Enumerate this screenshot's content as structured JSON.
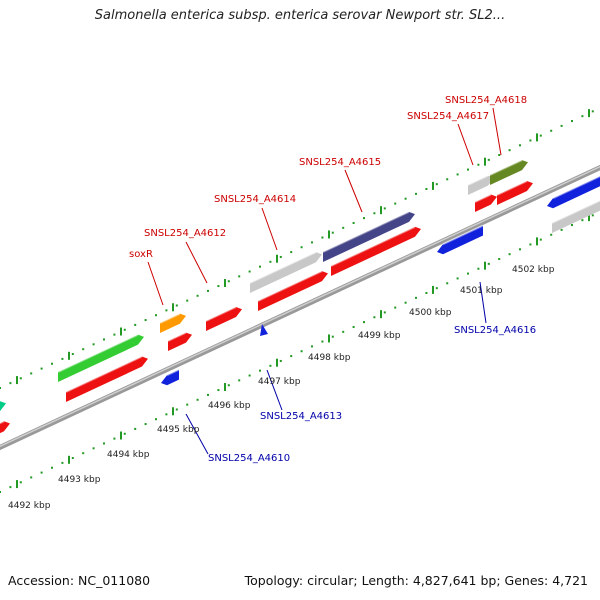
{
  "title": "Salmonella enterica subsp. enterica serovar Newport str. SL2...",
  "accession_text": "Accession: NC_011080",
  "summary_text": "Topology: circular; Length: 4,827,641 bp; Genes: 4,721",
  "ticks": {
    "unit": "kbp",
    "labels": [
      "4492 kbp",
      "4493 kbp",
      "4494 kbp",
      "4495 kbp",
      "4496 kbp",
      "4497 kbp",
      "4498 kbp",
      "4499 kbp",
      "4500 kbp",
      "4501 kbp",
      "4502 kbp"
    ]
  },
  "gene_labels": {
    "forward": [
      "soxR",
      "SNSL254_A4612",
      "SNSL254_A4614",
      "SNSL254_A4615",
      "SNSL254_A4617",
      "SNSL254_A4618"
    ],
    "reverse": [
      "SNSL254_A4610",
      "SNSL254_A4613",
      "SNSL254_A4616"
    ]
  },
  "colors": {
    "forward_label": "#cc0000",
    "reverse_label": "#0000aa",
    "cds": "#ee1111",
    "reverse_gene": "#1122dd",
    "green_feature": "#33cc33",
    "orange_feature": "#ff9900",
    "purple_feature": "#444488",
    "olive_feature": "#668822",
    "gray_feature": "#c8c8c8",
    "teal_feature": "#00cc88",
    "backbone": "#888888",
    "tick": "#229922"
  }
}
